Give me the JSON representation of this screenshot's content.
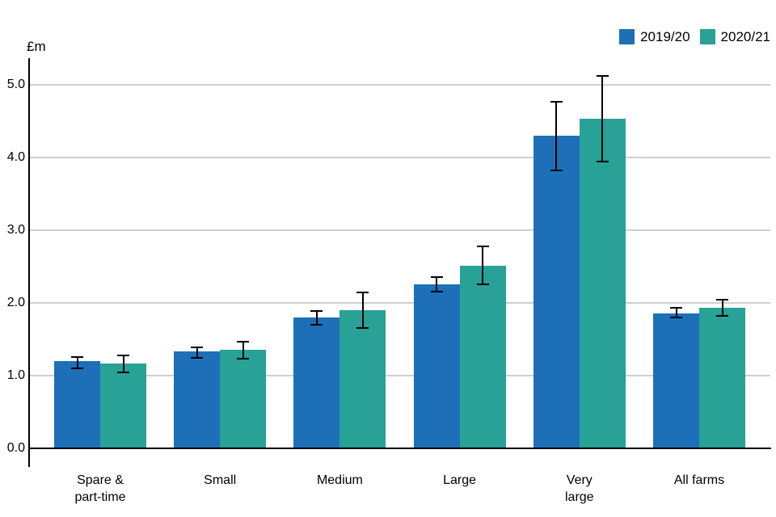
{
  "chart_data": {
    "type": "bar",
    "title": "",
    "ylabel": "£m",
    "xlabel": "",
    "categories": [
      "Spare &\npart-time",
      "Small",
      "Medium",
      "Large",
      "Very\nlarge",
      "All farms"
    ],
    "series": [
      {
        "name": "2019/20",
        "color": "#1d70b8",
        "values": [
          1.2,
          1.33,
          1.8,
          2.26,
          4.3,
          1.86
        ],
        "error_low": [
          1.1,
          1.25,
          1.7,
          2.16,
          3.82,
          1.8
        ],
        "error_high": [
          1.26,
          1.39,
          1.89,
          2.36,
          4.77,
          1.93
        ]
      },
      {
        "name": "2020/21",
        "color": "#28a197",
        "values": [
          1.17,
          1.36,
          1.9,
          2.51,
          4.53,
          1.93
        ],
        "error_low": [
          1.05,
          1.23,
          1.66,
          2.26,
          3.95,
          1.82
        ],
        "error_high": [
          1.28,
          1.47,
          2.14,
          2.78,
          5.12,
          2.04
        ]
      }
    ],
    "ylim": [
      0,
      5.37
    ],
    "yticks": [
      0,
      1,
      2,
      3,
      4,
      5
    ],
    "tick_format": "one-decimal",
    "grid": "horizontal",
    "legend_position": "top-right",
    "error_bars": true,
    "colors": {
      "grid": "#cfcfcf",
      "axis": "#000000",
      "error_bar": "#000000"
    }
  }
}
